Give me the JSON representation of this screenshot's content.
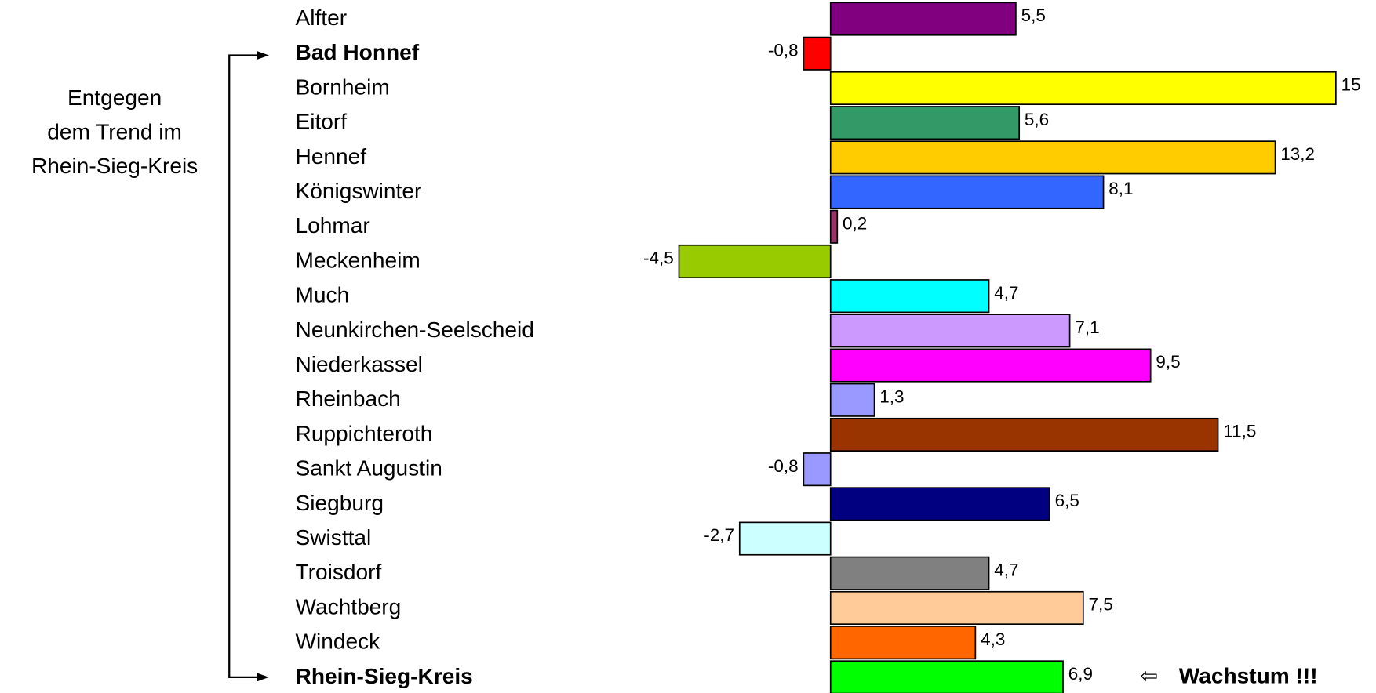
{
  "chart_data": {
    "type": "bar",
    "orientation": "horizontal",
    "categories": [
      "Alfter",
      "Bad Honnef",
      "Bornheim",
      "Eitorf",
      "Hennef",
      "Königswinter",
      "Lohmar",
      "Meckenheim",
      "Much",
      "Neunkirchen-Seelscheid",
      "Niederkassel",
      "Rheinbach",
      "Ruppichteroth",
      "Sankt Augustin",
      "Siegburg",
      "Swisttal",
      "Troisdorf",
      "Wachtberg",
      "Windeck",
      "Rhein-Sieg-Kreis"
    ],
    "values": [
      5.5,
      -0.8,
      15,
      5.6,
      13.2,
      8.1,
      0.2,
      -4.5,
      4.7,
      7.1,
      9.5,
      1.3,
      11.5,
      -0.8,
      6.5,
      -2.7,
      4.7,
      7.5,
      4.3,
      6.9
    ],
    "value_labels": [
      "5,5",
      "-0,8",
      "15",
      "5,6",
      "13,2",
      "8,1",
      "0,2",
      "-4,5",
      "4,7",
      "7,1",
      "9,5",
      "1,3",
      "11,5",
      "-0,8",
      "6,5",
      "-2,7",
      "4,7",
      "7,5",
      "4,3",
      "6,9"
    ],
    "colors": [
      "#800080",
      "#ff0000",
      "#ffff00",
      "#339966",
      "#ffcc00",
      "#3366ff",
      "#993366",
      "#99cc00",
      "#00ffff",
      "#cc99ff",
      "#ff00ff",
      "#9999ff",
      "#993300",
      "#9999ff",
      "#000080",
      "#ccffff",
      "#808080",
      "#ffcc99",
      "#ff6600",
      "#00ff00"
    ],
    "bold_categories": [
      1,
      19
    ],
    "xlim": [
      -4.5,
      15
    ],
    "annotation": [
      "Entgegen",
      "dem Trend im",
      "Rhein-Sieg-Kreis"
    ],
    "callout": "Wachstum !!!"
  }
}
